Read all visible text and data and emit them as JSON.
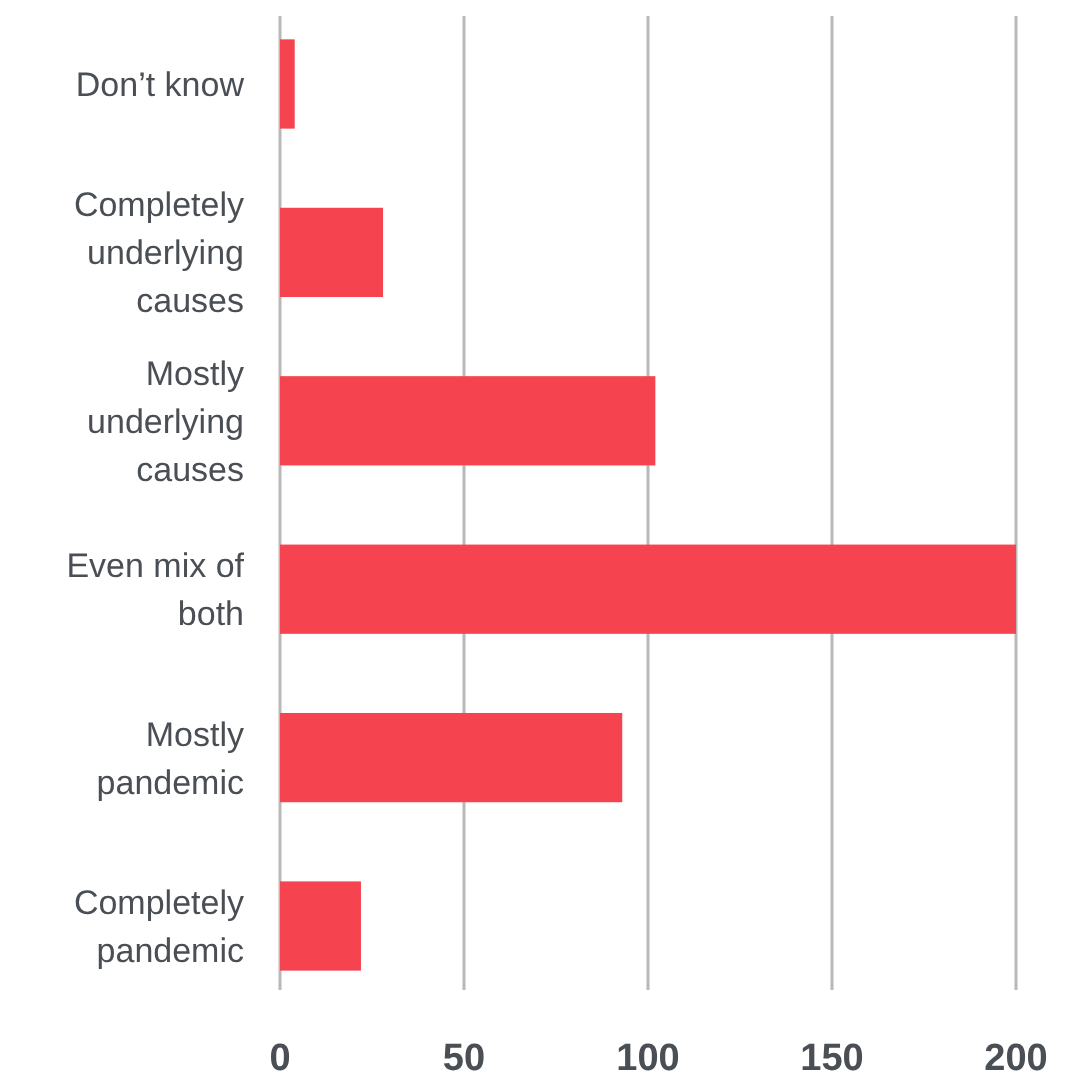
{
  "chart_data": {
    "type": "bar",
    "orientation": "horizontal",
    "categories": [
      "Don’t know",
      "Completely underlying causes",
      "Mostly underlying causes",
      "Even mix of both",
      "Mostly pandemic",
      "Completely pandemic"
    ],
    "values": [
      4,
      28,
      102,
      200,
      93,
      22
    ],
    "color": "#f5444f",
    "xlim": [
      0,
      200
    ],
    "xticks": [
      0,
      50,
      100,
      150,
      200
    ],
    "grid": "x"
  }
}
